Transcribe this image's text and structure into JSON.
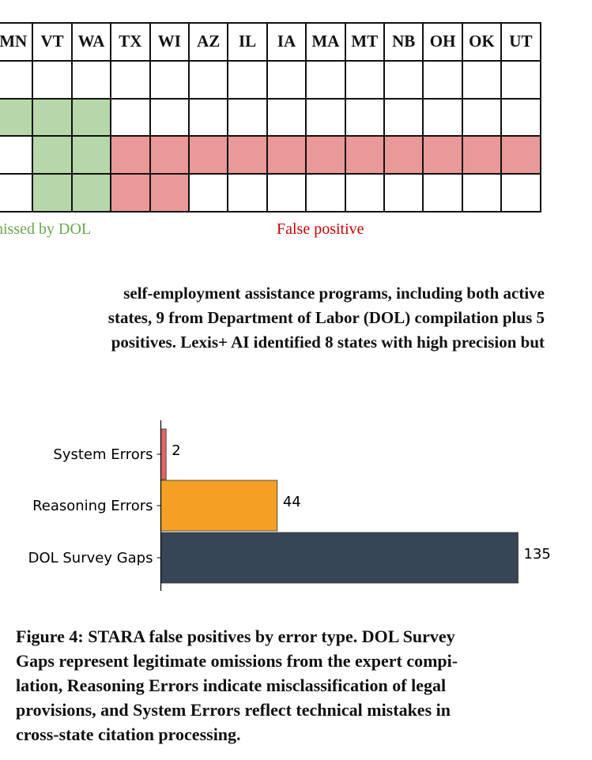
{
  "state_grid": {
    "headers": [
      "MN",
      "VT",
      "WA",
      "TX",
      "WI",
      "AZ",
      "IL",
      "IA",
      "MA",
      "MT",
      "NB",
      "OH",
      "OK",
      "UT"
    ],
    "rows": [
      [
        "",
        "",
        "",
        "",
        "",
        "",
        "",
        "",
        "",
        "",
        "",
        "",
        "",
        ""
      ],
      [
        "green",
        "green",
        "green",
        "",
        "",
        "",
        "",
        "",
        "",
        "",
        "",
        "",
        "",
        ""
      ],
      [
        "",
        "green",
        "green",
        "red",
        "red",
        "red",
        "red",
        "red",
        "red",
        "red",
        "red",
        "red",
        "red",
        "red"
      ],
      [
        "",
        "green",
        "green",
        "red",
        "red",
        "",
        "",
        "",
        "",
        "",
        "",
        "",
        "",
        ""
      ]
    ],
    "colors": {
      "green": "#b6d7a8",
      "red": "#ea9999"
    },
    "legend": {
      "missed_label": "nissed by DOL",
      "missed_color": "#6aa84f",
      "false_positive_label": "False positive",
      "false_positive_color": "#cc0000"
    }
  },
  "caption_top": {
    "lines": [
      "self-employment assistance programs, including both active",
      "states, 9 from Department of Labor (DOL) compilation plus 5",
      "positives. Lexis+ AI identified 8 states with high precision but"
    ]
  },
  "chart_data": {
    "type": "bar",
    "orientation": "horizontal",
    "categories": [
      "System Errors",
      "Reasoning Errors",
      "DOL Survey Gaps"
    ],
    "values": [
      2,
      44,
      135
    ],
    "colors": [
      "#e06666",
      "#f4a024",
      "#364656"
    ],
    "data_labels": [
      "2",
      "44",
      "135"
    ],
    "xlim": [
      0,
      135
    ],
    "grid": false,
    "title": "",
    "xlabel": "",
    "ylabel": ""
  },
  "figure_caption": {
    "lines": [
      "Figure 4: STARA false positives by error type. DOL Survey",
      "Gaps represent legitimate omissions from the expert compi-",
      "lation, Reasoning Errors indicate misclassification of legal",
      "provisions, and System Errors reflect technical mistakes in",
      "cross-state citation processing."
    ]
  }
}
